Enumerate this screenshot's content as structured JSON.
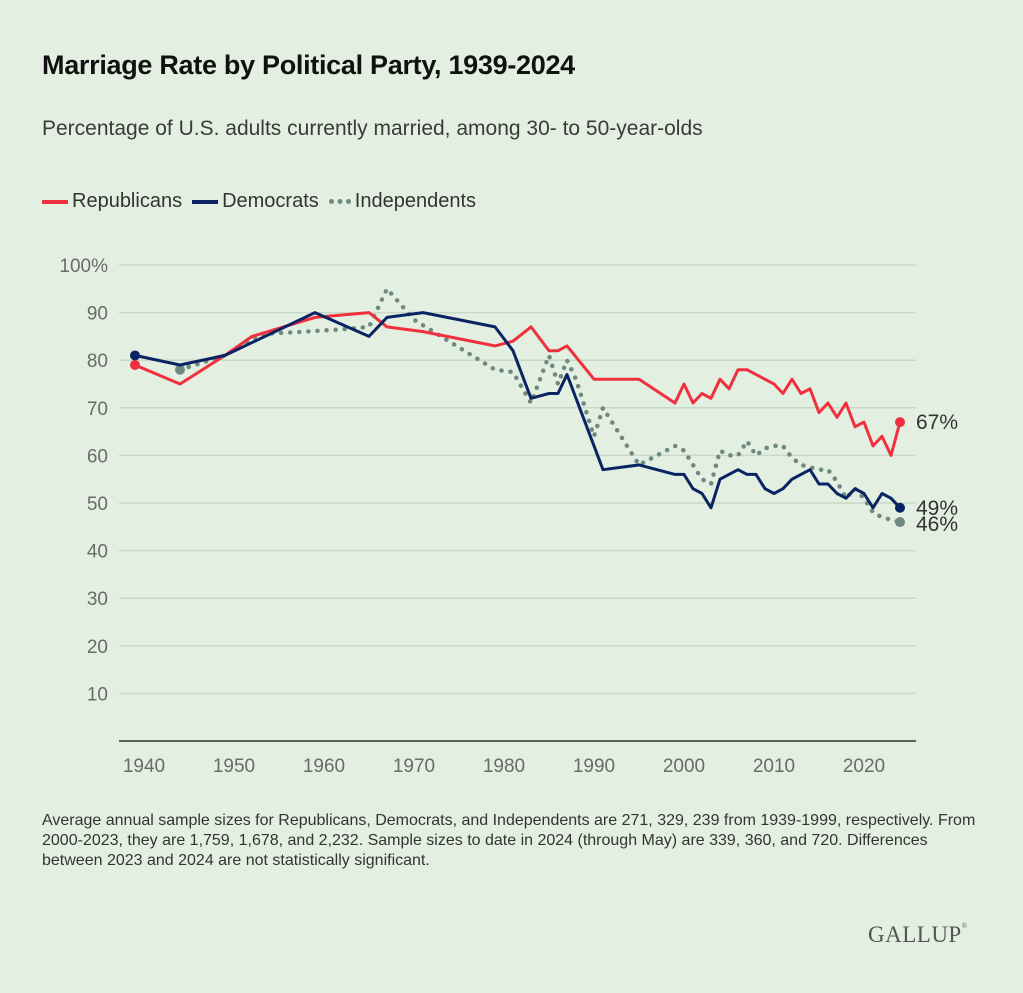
{
  "chart_data": {
    "type": "line",
    "title": "Marriage Rate by Political Party, 1939-2024",
    "subtitle": "Percentage of U.S. adults currently married, among 30- to 50-year-olds",
    "xlabel": "",
    "ylabel": "",
    "xlim": [
      1939,
      2024
    ],
    "ylim": [
      0,
      100
    ],
    "grid": true,
    "legend_position": "top-left",
    "x_ticks": [
      1940,
      1950,
      1960,
      1970,
      1980,
      1990,
      2000,
      2010,
      2020
    ],
    "x_tick_labels": [
      "1940",
      "1950",
      "1960",
      "1970",
      "1980",
      "1990",
      "2000",
      "2010",
      "2020"
    ],
    "y_ticks": [
      10,
      20,
      30,
      40,
      50,
      60,
      70,
      80,
      90,
      100
    ],
    "y_tick_labels": [
      "10",
      "20",
      "30",
      "40",
      "50",
      "60",
      "70",
      "80",
      "90",
      "100%"
    ],
    "series": [
      {
        "name": "Republicans",
        "color": "#F0303E",
        "style": "solid",
        "end_label": "67%",
        "points": [
          [
            1939,
            79
          ],
          [
            1944,
            75
          ],
          [
            1949,
            81
          ],
          [
            1952,
            85
          ],
          [
            1959,
            89
          ],
          [
            1965,
            90
          ],
          [
            1967,
            87
          ],
          [
            1971,
            86
          ],
          [
            1979,
            83
          ],
          [
            1981,
            84
          ],
          [
            1983,
            87
          ],
          [
            1985,
            82
          ],
          [
            1986,
            82
          ],
          [
            1987,
            83
          ],
          [
            1990,
            76
          ],
          [
            1995,
            76
          ],
          [
            1999,
            71
          ],
          [
            2000,
            75
          ],
          [
            2001,
            71
          ],
          [
            2002,
            73
          ],
          [
            2003,
            72
          ],
          [
            2004,
            76
          ],
          [
            2005,
            74
          ],
          [
            2006,
            78
          ],
          [
            2007,
            78
          ],
          [
            2010,
            75
          ],
          [
            2011,
            73
          ],
          [
            2012,
            76
          ],
          [
            2013,
            73
          ],
          [
            2014,
            74
          ],
          [
            2015,
            69
          ],
          [
            2016,
            71
          ],
          [
            2017,
            68
          ],
          [
            2018,
            71
          ],
          [
            2019,
            66
          ],
          [
            2020,
            67
          ],
          [
            2021,
            62
          ],
          [
            2022,
            64
          ],
          [
            2023,
            60
          ],
          [
            2024,
            67
          ]
        ]
      },
      {
        "name": "Democrats",
        "color": "#0A2463",
        "style": "solid",
        "end_label": "49%",
        "points": [
          [
            1939,
            81
          ],
          [
            1944,
            79
          ],
          [
            1949,
            81
          ],
          [
            1959,
            90
          ],
          [
            1965,
            85
          ],
          [
            1967,
            89
          ],
          [
            1971,
            90
          ],
          [
            1979,
            87
          ],
          [
            1981,
            82
          ],
          [
            1983,
            72
          ],
          [
            1985,
            73
          ],
          [
            1986,
            73
          ],
          [
            1987,
            77
          ],
          [
            1991,
            57
          ],
          [
            1995,
            58
          ],
          [
            1999,
            56
          ],
          [
            2000,
            56
          ],
          [
            2001,
            53
          ],
          [
            2002,
            52
          ],
          [
            2003,
            49
          ],
          [
            2004,
            55
          ],
          [
            2005,
            56
          ],
          [
            2006,
            57
          ],
          [
            2007,
            56
          ],
          [
            2008,
            56
          ],
          [
            2009,
            53
          ],
          [
            2010,
            52
          ],
          [
            2011,
            53
          ],
          [
            2012,
            55
          ],
          [
            2013,
            56
          ],
          [
            2014,
            57
          ],
          [
            2015,
            54
          ],
          [
            2016,
            54
          ],
          [
            2017,
            52
          ],
          [
            2018,
            51
          ],
          [
            2019,
            53
          ],
          [
            2020,
            52
          ],
          [
            2021,
            49
          ],
          [
            2022,
            52
          ],
          [
            2023,
            51
          ],
          [
            2024,
            49
          ]
        ]
      },
      {
        "name": "Independents",
        "color": "#6E8A80",
        "style": "dotted",
        "end_label": "46%",
        "points": [
          [
            1944,
            78
          ],
          [
            1949,
            81
          ],
          [
            1953,
            85.5
          ],
          [
            1958,
            86
          ],
          [
            1962,
            86.5
          ],
          [
            1965,
            87
          ],
          [
            1967,
            95
          ],
          [
            1970,
            88.5
          ],
          [
            1979,
            78
          ],
          [
            1981,
            77.5
          ],
          [
            1983,
            71
          ],
          [
            1985,
            81
          ],
          [
            1986,
            75
          ],
          [
            1987,
            80
          ],
          [
            1988,
            76
          ],
          [
            1990,
            64
          ],
          [
            1991,
            70
          ],
          [
            1995,
            58
          ],
          [
            1997,
            60
          ],
          [
            1999,
            62
          ],
          [
            2000,
            61
          ],
          [
            2001,
            58
          ],
          [
            2002,
            55
          ],
          [
            2003,
            54
          ],
          [
            2004,
            61
          ],
          [
            2005,
            60
          ],
          [
            2006,
            60
          ],
          [
            2007,
            63
          ],
          [
            2008,
            60
          ],
          [
            2009,
            61.5
          ],
          [
            2010,
            62
          ],
          [
            2011,
            62
          ],
          [
            2012,
            59.5
          ],
          [
            2013,
            58
          ],
          [
            2015,
            57
          ],
          [
            2016,
            57
          ],
          [
            2017,
            54.5
          ],
          [
            2018,
            51
          ],
          [
            2019,
            53
          ],
          [
            2020,
            51
          ],
          [
            2021,
            48
          ],
          [
            2022,
            47
          ],
          [
            2023,
            46.5
          ],
          [
            2024,
            46
          ]
        ]
      }
    ]
  },
  "footnote": "Average annual sample sizes for Republicans, Democrats, and Independents are 271, 329, 239 from 1939-1999, respectively. From 2000-2023, they are 1,759, 1,678, and 2,232. Sample sizes to date in 2024 (through May) are 339, 360, and 720. Differences between 2023 and 2024 are not statistically significant.",
  "brand": "GALLUP",
  "brand_mark": "®"
}
